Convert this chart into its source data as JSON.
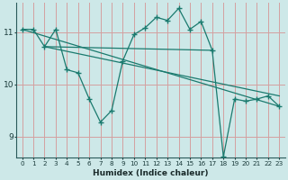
{
  "title": "",
  "xlabel": "Humidex (Indice chaleur)",
  "ylabel": "",
  "bg_color": "#cde8e8",
  "line_color": "#1a7a6e",
  "grid_color": "#d4a0a0",
  "xlim": [
    -0.5,
    23.5
  ],
  "ylim": [
    8.6,
    11.55
  ],
  "yticks": [
    9,
    10,
    11
  ],
  "xticks": [
    0,
    1,
    2,
    3,
    4,
    5,
    6,
    7,
    8,
    9,
    10,
    11,
    12,
    13,
    14,
    15,
    16,
    17,
    18,
    19,
    20,
    21,
    22,
    23
  ],
  "zigzag_x": [
    0,
    1,
    2,
    3,
    4,
    5,
    6,
    7,
    8,
    9,
    10,
    11,
    12,
    13,
    14,
    15,
    16,
    17,
    18,
    19,
    20,
    21,
    22,
    23
  ],
  "zigzag_y": [
    11.05,
    11.05,
    10.72,
    11.05,
    10.28,
    10.22,
    9.72,
    9.28,
    9.5,
    10.45,
    10.95,
    11.08,
    11.28,
    11.22,
    11.45,
    11.05,
    11.2,
    10.65,
    8.62,
    9.72,
    9.68,
    9.72,
    9.78,
    9.58
  ],
  "trend_lines": [
    {
      "x": [
        0,
        23
      ],
      "y": [
        11.05,
        9.58
      ]
    },
    {
      "x": [
        2,
        23
      ],
      "y": [
        10.72,
        9.78
      ]
    },
    {
      "x": [
        2,
        17
      ],
      "y": [
        10.72,
        10.65
      ]
    }
  ]
}
